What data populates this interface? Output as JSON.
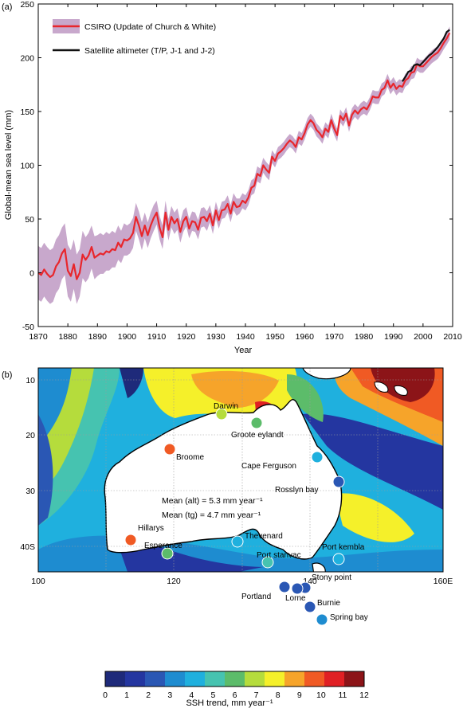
{
  "panel_a_label": "(a)",
  "panel_b_label": "(b)",
  "chart_data": [
    {
      "type": "line",
      "title": "",
      "xlabel": "Year",
      "ylabel": "Global-mean sea level (mm)",
      "xlim": [
        1870,
        2010
      ],
      "ylim": [
        -50,
        250
      ],
      "xticks": [
        1870,
        1880,
        1890,
        1900,
        1910,
        1920,
        1930,
        1940,
        1950,
        1960,
        1970,
        1980,
        1990,
        2000,
        2010
      ],
      "yticks": [
        -50,
        0,
        50,
        100,
        150,
        200,
        250
      ],
      "legend_position": "top-left",
      "series": [
        {
          "name": "CSIRO (Update of Church & White)",
          "color": "#e8262c",
          "band_color": "#c8a8cc",
          "x": [
            1870,
            1871,
            1872,
            1873,
            1874,
            1875,
            1876,
            1877,
            1878,
            1879,
            1880,
            1881,
            1882,
            1883,
            1884,
            1885,
            1886,
            1887,
            1888,
            1889,
            1890,
            1891,
            1892,
            1893,
            1894,
            1895,
            1896,
            1897,
            1898,
            1899,
            1900,
            1901,
            1902,
            1903,
            1904,
            1905,
            1906,
            1907,
            1908,
            1909,
            1910,
            1911,
            1912,
            1913,
            1914,
            1915,
            1916,
            1917,
            1918,
            1919,
            1920,
            1921,
            1922,
            1923,
            1924,
            1925,
            1926,
            1927,
            1928,
            1929,
            1930,
            1931,
            1932,
            1933,
            1934,
            1935,
            1936,
            1937,
            1938,
            1939,
            1940,
            1941,
            1942,
            1943,
            1944,
            1945,
            1946,
            1947,
            1948,
            1949,
            1950,
            1951,
            1952,
            1953,
            1954,
            1955,
            1956,
            1957,
            1958,
            1959,
            1960,
            1961,
            1962,
            1963,
            1964,
            1965,
            1966,
            1967,
            1968,
            1969,
            1970,
            1971,
            1972,
            1973,
            1974,
            1975,
            1976,
            1977,
            1978,
            1979,
            1980,
            1981,
            1982,
            1983,
            1984,
            1985,
            1986,
            1987,
            1988,
            1989,
            1990,
            1991,
            1992,
            1993,
            1994,
            1995,
            1996,
            1997,
            1998,
            1999,
            2000,
            2001,
            2002,
            2003,
            2004,
            2005,
            2006,
            2007,
            2008,
            2009
          ],
          "y": [
            0,
            -2,
            3,
            -1,
            -4,
            -2,
            6,
            10,
            18,
            22,
            2,
            -3,
            8,
            -6,
            0,
            17,
            12,
            16,
            24,
            14,
            16,
            18,
            17,
            20,
            19,
            22,
            21,
            28,
            24,
            31,
            30,
            32,
            37,
            52,
            44,
            34,
            44,
            35,
            44,
            51,
            56,
            42,
            33,
            56,
            40,
            52,
            46,
            50,
            38,
            48,
            52,
            41,
            48,
            47,
            40,
            51,
            52,
            48,
            55,
            44,
            58,
            49,
            58,
            59,
            64,
            55,
            66,
            61,
            62,
            67,
            65,
            70,
            79,
            81,
            92,
            90,
            100,
            96,
            93,
            108,
            104,
            111,
            113,
            116,
            120,
            123,
            121,
            117,
            126,
            124,
            130,
            138,
            142,
            139,
            133,
            130,
            126,
            134,
            131,
            142,
            134,
            128,
            146,
            142,
            148,
            137,
            147,
            151,
            148,
            152,
            154,
            152,
            157,
            164,
            163,
            163,
            170,
            172,
            179,
            172,
            176,
            171,
            174,
            173,
            179,
            181,
            186,
            187,
            194,
            192,
            192,
            195,
            198,
            201,
            203,
            205,
            209,
            214,
            218,
            223
          ],
          "band_half_width": [
            25,
            25,
            25,
            25,
            25,
            25,
            25,
            25,
            24,
            24,
            24,
            24,
            23,
            23,
            22,
            22,
            21,
            21,
            20,
            20,
            19,
            19,
            18,
            18,
            17,
            17,
            16,
            16,
            15,
            15,
            14,
            14,
            14,
            13,
            13,
            13,
            12,
            12,
            12,
            12,
            11,
            11,
            11,
            11,
            10,
            10,
            10,
            10,
            10,
            10,
            9,
            9,
            9,
            9,
            9,
            9,
            9,
            9,
            8,
            8,
            8,
            8,
            8,
            8,
            8,
            8,
            8,
            8,
            7,
            7,
            7,
            7,
            7,
            7,
            7,
            7,
            7,
            7,
            7,
            6,
            6,
            6,
            6,
            6,
            6,
            6,
            6,
            6,
            6,
            6,
            6,
            6,
            6,
            6,
            6,
            6,
            6,
            6,
            6,
            6,
            6,
            6,
            6,
            6,
            6,
            6,
            6,
            6,
            6,
            6,
            6,
            6,
            6,
            6,
            6,
            6,
            6,
            6,
            6,
            6,
            6,
            6,
            6,
            6,
            6,
            6,
            6,
            6,
            6,
            6,
            6,
            6,
            6,
            6,
            6,
            6,
            6,
            6,
            6,
            6
          ]
        },
        {
          "name": "Satellite altimeter (T/P, J-1 and J-2)",
          "color": "#111111",
          "x": [
            1993,
            1994,
            1995,
            1996,
            1997,
            1998,
            1999,
            2000,
            2001,
            2002,
            2003,
            2004,
            2005,
            2006,
            2007,
            2008,
            2009
          ],
          "y": [
            178,
            182,
            187,
            188,
            193,
            194,
            193,
            196,
            199,
            202,
            204,
            207,
            210,
            214,
            218,
            224,
            226
          ]
        }
      ]
    },
    {
      "type": "heatmap",
      "title": "",
      "xlabel": "",
      "ylabel": "",
      "colorbar_label": "SSH trend, mm year⁻¹",
      "colorbar_ticks": [
        "0",
        "1",
        "2",
        "3",
        "4",
        "5",
        "6",
        "7",
        "8",
        "9",
        "10",
        "11",
        "12"
      ],
      "colorbar_colors": [
        "#1e2a7a",
        "#2436a0",
        "#2a57b4",
        "#1e8cd0",
        "#1fb0de",
        "#46c3b0",
        "#5cbc6a",
        "#b5dc3c",
        "#f5f02a",
        "#f6a42a",
        "#f05a24",
        "#e02024",
        "#8c1418"
      ],
      "x_ticks": [
        "100",
        "120",
        "140",
        "160E"
      ],
      "y_ticks": [
        "10",
        "20",
        "30",
        "40S"
      ],
      "mean_alt": "Mean (alt) = 5.3 mm year⁻¹",
      "mean_tg": "Mean (tg) = 4.7 mm year⁻¹",
      "stations": [
        {
          "name": "Darwin",
          "value": 7
        },
        {
          "name": "Groote eylandt",
          "value": 6
        },
        {
          "name": "Broome",
          "value": 10
        },
        {
          "name": "Cape Ferguson",
          "value": 4
        },
        {
          "name": "Rosslyn bay",
          "value": 2
        },
        {
          "name": "Hillarys",
          "value": 10
        },
        {
          "name": "Esperance",
          "value": 6
        },
        {
          "name": "Thevenard",
          "value": 4
        },
        {
          "name": "Port stanvac",
          "value": 5
        },
        {
          "name": "Port kembla",
          "value": 4
        },
        {
          "name": "Stony point",
          "value": 2
        },
        {
          "name": "Portland",
          "value": 2
        },
        {
          "name": "Lorne",
          "value": 2
        },
        {
          "name": "Burnie",
          "value": 2
        },
        {
          "name": "Spring bay",
          "value": 3
        }
      ]
    }
  ]
}
